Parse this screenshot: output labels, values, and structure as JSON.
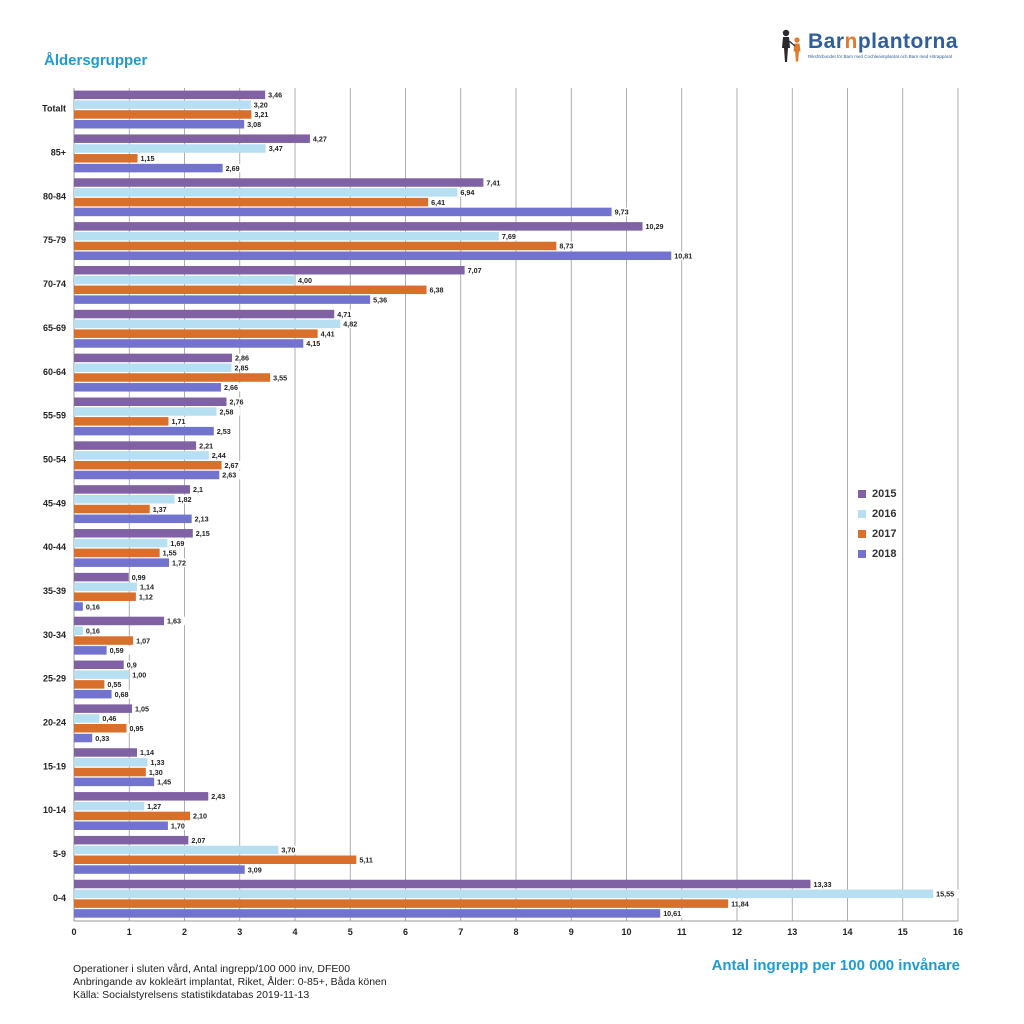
{
  "heading": "Åldersgrupper",
  "logo": {
    "name_pre": "Bar",
    "name_mid": "n",
    "name_post": "plantorna",
    "tagline": "Riksförbundet för Barn med Cochleaimplantat och Barn med Hörapparat"
  },
  "notes": [
    "Operationer i sluten vård, Antal ingrepp/100 000 inv, DFE00",
    "Anbringande av kokleärt implantat, Riket, Ålder: 0-85+, Båda könen",
    "Källa: Socialstyrelsens statistikdatabas 2019-11-13"
  ],
  "colors": {
    "2015": "#8062a4",
    "2016": "#b7dff2",
    "2017": "#d86f2a",
    "2018": "#7173cf",
    "accent": "#1f9bd1",
    "logo_orange": "#e07b2d"
  },
  "chart_data": {
    "type": "bar",
    "orientation": "horizontal",
    "title": "Åldersgrupper",
    "xlabel": "Antal ingrepp per 100 000 invånare",
    "ylabel": "",
    "xlim": [
      0,
      16
    ],
    "xticks": [
      "0",
      "1",
      "2",
      "3",
      "4",
      "5",
      "6",
      "7",
      "8",
      "9",
      "10",
      "11",
      "12",
      "13",
      "14",
      "15",
      "16"
    ],
    "grid": true,
    "legend_position": "right",
    "categories": [
      "Totalt",
      "85+",
      "80-84",
      "75-79",
      "70-74",
      "65-69",
      "60-64",
      "55-59",
      "50-54",
      "45-49",
      "40-44",
      "35-39",
      "30-34",
      "25-29",
      "20-24",
      "15-19",
      "10-14",
      "5-9",
      "0-4"
    ],
    "series": [
      {
        "name": "2015",
        "values": [
          3.46,
          4.27,
          7.41,
          10.29,
          7.07,
          4.71,
          2.86,
          2.76,
          2.21,
          2.1,
          2.15,
          0.99,
          1.63,
          0.9,
          1.05,
          1.14,
          2.43,
          2.07,
          13.33
        ],
        "labels": [
          "3,46",
          "4,27",
          "7,41",
          "10,29",
          "7,07",
          "4,71",
          "2,86",
          "2,76",
          "2,21",
          "2,1",
          "2,15",
          "0,99",
          "1,63",
          "0,9",
          "1,05",
          "1,14",
          "2,43",
          "2,07",
          "13,33"
        ]
      },
      {
        "name": "2016",
        "values": [
          3.2,
          3.47,
          6.94,
          7.69,
          4.0,
          4.82,
          2.85,
          2.58,
          2.44,
          1.82,
          1.69,
          1.14,
          0.16,
          1.0,
          0.46,
          1.33,
          1.27,
          3.7,
          15.55
        ],
        "labels": [
          "3,20",
          "3,47",
          "6,94",
          "7,69",
          "4,00",
          "4,82",
          "2,85",
          "2,58",
          "2,44",
          "1,82",
          "1,69",
          "1,14",
          "0,16",
          "1,00",
          "0,46",
          "1,33",
          "1,27",
          "3,70",
          "15,55"
        ]
      },
      {
        "name": "2017",
        "values": [
          3.21,
          1.15,
          6.41,
          8.73,
          6.38,
          4.41,
          3.55,
          1.71,
          2.67,
          1.37,
          1.55,
          1.12,
          1.07,
          0.55,
          0.95,
          1.3,
          2.1,
          5.11,
          11.84
        ],
        "labels": [
          "3,21",
          "1,15",
          "6,41",
          "8,73",
          "6,38",
          "4,41",
          "3,55",
          "1,71",
          "2,67",
          "1,37",
          "1,55",
          "1,12",
          "1,07",
          "0,55",
          "0,95",
          "1,30",
          "2,10",
          "5,11",
          "11,84"
        ]
      },
      {
        "name": "2018",
        "values": [
          3.08,
          2.69,
          9.73,
          10.81,
          5.36,
          4.15,
          2.66,
          2.53,
          2.63,
          2.13,
          1.72,
          0.16,
          0.59,
          0.68,
          0.33,
          1.45,
          1.7,
          3.09,
          10.61
        ],
        "labels": [
          "3,08",
          "2,69",
          "9,73",
          "10,81",
          "5,36",
          "4,15",
          "2,66",
          "2,53",
          "2,63",
          "2,13",
          "1,72",
          "0,16",
          "0,59",
          "0,68",
          "0,33",
          "1,45",
          "1,70",
          "3,09",
          "10,61"
        ]
      }
    ]
  }
}
